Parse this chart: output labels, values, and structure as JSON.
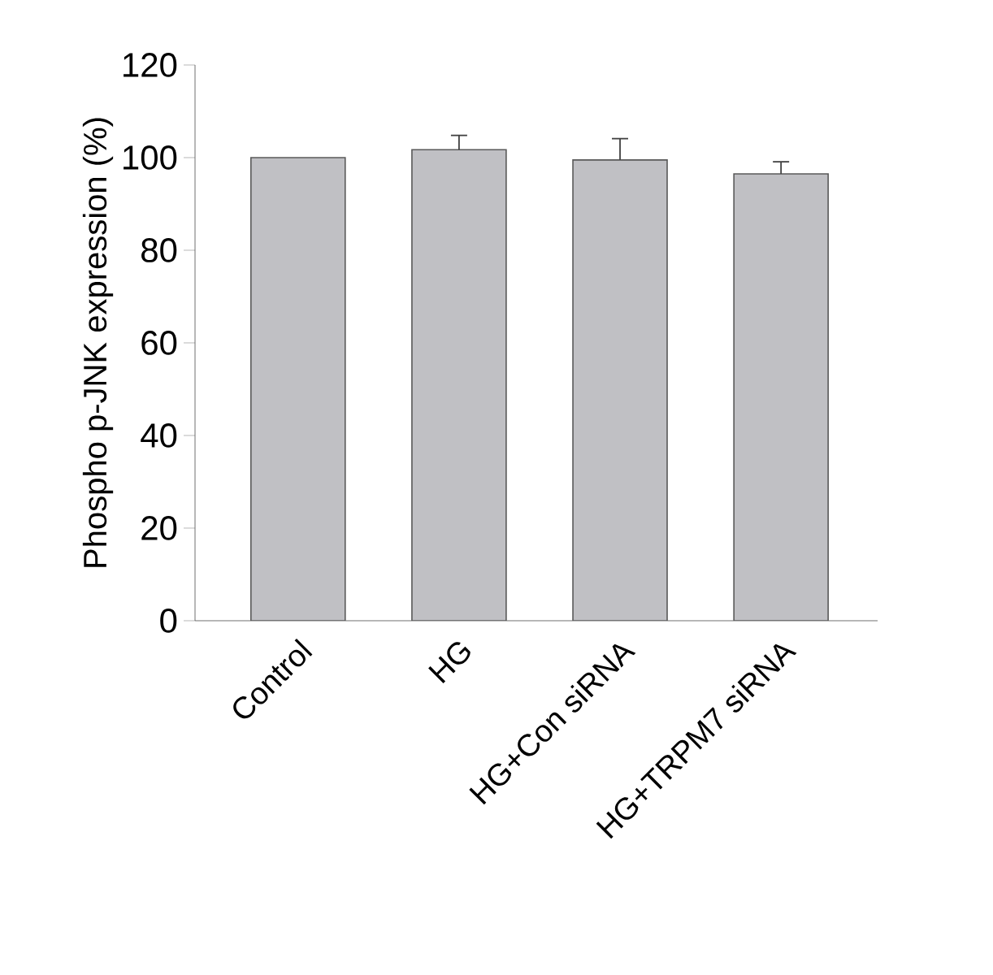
{
  "chart_data": {
    "type": "bar",
    "ylabel": "Phospho p-JNK expression (%)",
    "categories": [
      "Control",
      "HG",
      "HG+Con siRNA",
      "HG+TRPM7 siRNA"
    ],
    "values": [
      100,
      101.7,
      99.5,
      96.5
    ],
    "errors": [
      null,
      [
        101.7,
        104.8
      ],
      [
        99.5,
        104.1
      ],
      [
        96.5,
        99.1
      ]
    ],
    "color": "#c0c0c4",
    "ylim": [
      0,
      120
    ],
    "yticks": [
      0,
      20,
      40,
      60,
      80,
      100,
      120
    ]
  }
}
